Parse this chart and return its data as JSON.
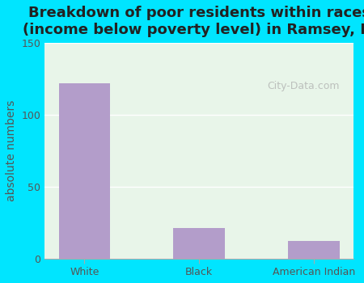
{
  "title": "Breakdown of poor residents within races\n(income below poverty level) in Ramsey, IL",
  "categories": [
    "White",
    "Black",
    "American Indian"
  ],
  "values": [
    122,
    21,
    12
  ],
  "bar_color": "#b39dca",
  "ylabel": "absolute numbers",
  "ylim": [
    0,
    150
  ],
  "yticks": [
    0,
    50,
    100,
    150
  ],
  "background_outer": "#00e5ff",
  "background_plot_top": "#e8f5e9",
  "background_plot_bottom": "#e0f7f7",
  "grid_color": "#ffffff",
  "title_fontsize": 13,
  "label_fontsize": 10,
  "tick_fontsize": 9,
  "watermark": "City-Data.com"
}
